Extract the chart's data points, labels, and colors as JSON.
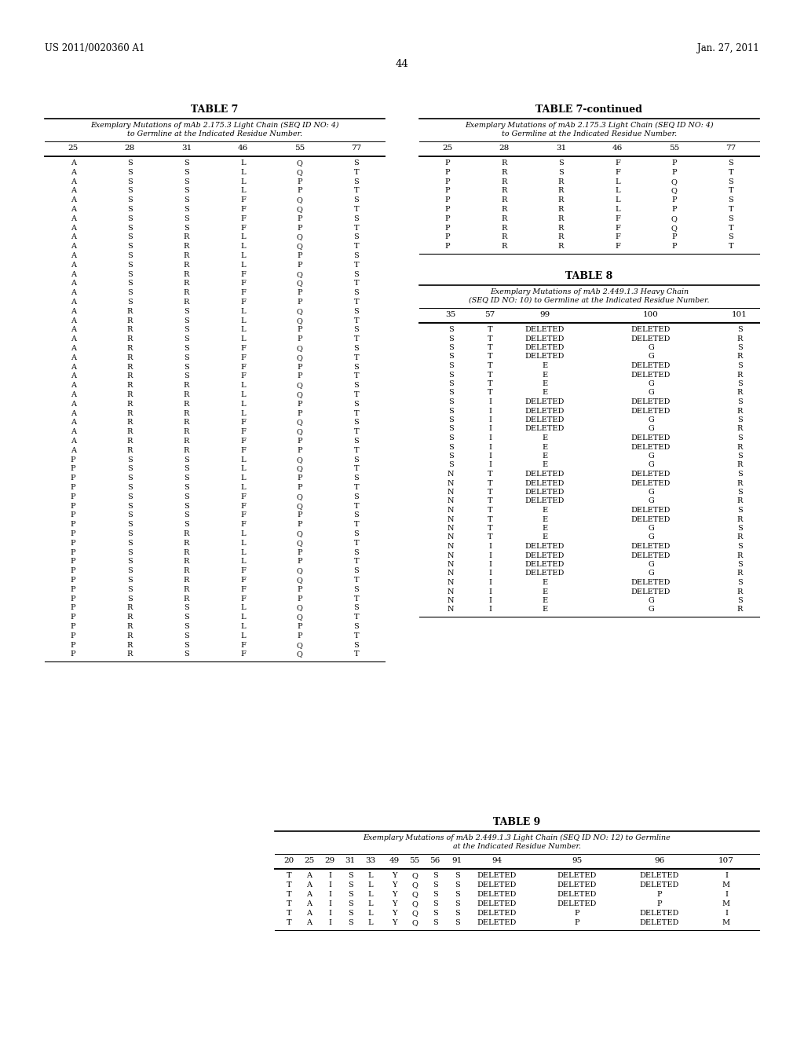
{
  "header_left": "US 2011/0020360 A1",
  "header_right": "Jan. 27, 2011",
  "page_number": "44",
  "table7_title": "TABLE 7",
  "table7_subtitle_1": "Exemplary Mutations of mAb 2.175.3 Light Chain (SEQ ID NO: 4)",
  "table7_subtitle_2": "to Germline at the Indicated Residue Number.",
  "table7_headers": [
    "25",
    "28",
    "31",
    "46",
    "55",
    "77"
  ],
  "table7_data": [
    [
      "A",
      "S",
      "S",
      "L",
      "Q",
      "S"
    ],
    [
      "A",
      "S",
      "S",
      "L",
      "Q",
      "T"
    ],
    [
      "A",
      "S",
      "S",
      "L",
      "P",
      "S"
    ],
    [
      "A",
      "S",
      "S",
      "L",
      "P",
      "T"
    ],
    [
      "A",
      "S",
      "S",
      "F",
      "Q",
      "S"
    ],
    [
      "A",
      "S",
      "S",
      "F",
      "Q",
      "T"
    ],
    [
      "A",
      "S",
      "S",
      "F",
      "P",
      "S"
    ],
    [
      "A",
      "S",
      "S",
      "F",
      "P",
      "T"
    ],
    [
      "A",
      "S",
      "R",
      "L",
      "Q",
      "S"
    ],
    [
      "A",
      "S",
      "R",
      "L",
      "Q",
      "T"
    ],
    [
      "A",
      "S",
      "R",
      "L",
      "P",
      "S"
    ],
    [
      "A",
      "S",
      "R",
      "L",
      "P",
      "T"
    ],
    [
      "A",
      "S",
      "R",
      "F",
      "Q",
      "S"
    ],
    [
      "A",
      "S",
      "R",
      "F",
      "Q",
      "T"
    ],
    [
      "A",
      "S",
      "R",
      "F",
      "P",
      "S"
    ],
    [
      "A",
      "S",
      "R",
      "F",
      "P",
      "T"
    ],
    [
      "A",
      "R",
      "S",
      "L",
      "Q",
      "S"
    ],
    [
      "A",
      "R",
      "S",
      "L",
      "Q",
      "T"
    ],
    [
      "A",
      "R",
      "S",
      "L",
      "P",
      "S"
    ],
    [
      "A",
      "R",
      "S",
      "L",
      "P",
      "T"
    ],
    [
      "A",
      "R",
      "S",
      "F",
      "Q",
      "S"
    ],
    [
      "A",
      "R",
      "S",
      "F",
      "Q",
      "T"
    ],
    [
      "A",
      "R",
      "S",
      "F",
      "P",
      "S"
    ],
    [
      "A",
      "R",
      "S",
      "F",
      "P",
      "T"
    ],
    [
      "A",
      "R",
      "R",
      "L",
      "Q",
      "S"
    ],
    [
      "A",
      "R",
      "R",
      "L",
      "Q",
      "T"
    ],
    [
      "A",
      "R",
      "R",
      "L",
      "P",
      "S"
    ],
    [
      "A",
      "R",
      "R",
      "L",
      "P",
      "T"
    ],
    [
      "A",
      "R",
      "R",
      "F",
      "Q",
      "S"
    ],
    [
      "A",
      "R",
      "R",
      "F",
      "Q",
      "T"
    ],
    [
      "A",
      "R",
      "R",
      "F",
      "P",
      "S"
    ],
    [
      "A",
      "R",
      "R",
      "F",
      "P",
      "T"
    ],
    [
      "P",
      "S",
      "S",
      "L",
      "Q",
      "S"
    ],
    [
      "P",
      "S",
      "S",
      "L",
      "Q",
      "T"
    ],
    [
      "P",
      "S",
      "S",
      "L",
      "P",
      "S"
    ],
    [
      "P",
      "S",
      "S",
      "L",
      "P",
      "T"
    ],
    [
      "P",
      "S",
      "S",
      "F",
      "Q",
      "S"
    ],
    [
      "P",
      "S",
      "S",
      "F",
      "Q",
      "T"
    ],
    [
      "P",
      "S",
      "S",
      "F",
      "P",
      "S"
    ],
    [
      "P",
      "S",
      "S",
      "F",
      "P",
      "T"
    ],
    [
      "P",
      "S",
      "R",
      "L",
      "Q",
      "S"
    ],
    [
      "P",
      "S",
      "R",
      "L",
      "Q",
      "T"
    ],
    [
      "P",
      "S",
      "R",
      "L",
      "P",
      "S"
    ],
    [
      "P",
      "S",
      "R",
      "L",
      "P",
      "T"
    ],
    [
      "P",
      "S",
      "R",
      "F",
      "Q",
      "S"
    ],
    [
      "P",
      "S",
      "R",
      "F",
      "Q",
      "T"
    ],
    [
      "P",
      "S",
      "R",
      "F",
      "P",
      "S"
    ],
    [
      "P",
      "S",
      "R",
      "F",
      "P",
      "T"
    ],
    [
      "P",
      "R",
      "S",
      "L",
      "Q",
      "S"
    ],
    [
      "P",
      "R",
      "S",
      "L",
      "Q",
      "T"
    ],
    [
      "P",
      "R",
      "S",
      "L",
      "P",
      "S"
    ],
    [
      "P",
      "R",
      "S",
      "L",
      "P",
      "T"
    ],
    [
      "P",
      "R",
      "S",
      "F",
      "Q",
      "S"
    ],
    [
      "P",
      "R",
      "S",
      "F",
      "Q",
      "T"
    ]
  ],
  "table7c_title": "TABLE 7-continued",
  "table7c_subtitle_1": "Exemplary Mutations of mAb 2.175.3 Light Chain (SEQ ID NO: 4)",
  "table7c_subtitle_2": "to Germline at the Indicated Residue Number.",
  "table7c_headers": [
    "25",
    "28",
    "31",
    "46",
    "55",
    "77"
  ],
  "table7c_data": [
    [
      "P",
      "R",
      "S",
      "F",
      "P",
      "S"
    ],
    [
      "P",
      "R",
      "S",
      "F",
      "P",
      "T"
    ],
    [
      "P",
      "R",
      "R",
      "L",
      "Q",
      "S"
    ],
    [
      "P",
      "R",
      "R",
      "L",
      "Q",
      "T"
    ],
    [
      "P",
      "R",
      "R",
      "L",
      "P",
      "S"
    ],
    [
      "P",
      "R",
      "R",
      "L",
      "P",
      "T"
    ],
    [
      "P",
      "R",
      "R",
      "F",
      "Q",
      "S"
    ],
    [
      "P",
      "R",
      "R",
      "F",
      "Q",
      "T"
    ],
    [
      "P",
      "R",
      "R",
      "F",
      "P",
      "S"
    ],
    [
      "P",
      "R",
      "R",
      "F",
      "P",
      "T"
    ]
  ],
  "table8_title": "TABLE 8",
  "table8_subtitle_1": "Exemplary Mutations of mAb 2.449.1.3 Heavy Chain",
  "table8_subtitle_2": "(SEQ ID NO: 10) to Germline at the Indicated Residue Number.",
  "table8_headers": [
    "35",
    "57",
    "99",
    "100",
    "101"
  ],
  "table8_data": [
    [
      "S",
      "T",
      "DELETED",
      "DELETED",
      "S"
    ],
    [
      "S",
      "T",
      "DELETED",
      "DELETED",
      "R"
    ],
    [
      "S",
      "T",
      "DELETED",
      "G",
      "S"
    ],
    [
      "S",
      "T",
      "DELETED",
      "G",
      "R"
    ],
    [
      "S",
      "T",
      "E",
      "DELETED",
      "S"
    ],
    [
      "S",
      "T",
      "E",
      "DELETED",
      "R"
    ],
    [
      "S",
      "T",
      "E",
      "G",
      "S"
    ],
    [
      "S",
      "T",
      "E",
      "G",
      "R"
    ],
    [
      "S",
      "I",
      "DELETED",
      "DELETED",
      "S"
    ],
    [
      "S",
      "I",
      "DELETED",
      "DELETED",
      "R"
    ],
    [
      "S",
      "I",
      "DELETED",
      "G",
      "S"
    ],
    [
      "S",
      "I",
      "DELETED",
      "G",
      "R"
    ],
    [
      "S",
      "I",
      "E",
      "DELETED",
      "S"
    ],
    [
      "S",
      "I",
      "E",
      "DELETED",
      "R"
    ],
    [
      "S",
      "I",
      "E",
      "G",
      "S"
    ],
    [
      "S",
      "I",
      "E",
      "G",
      "R"
    ],
    [
      "N",
      "T",
      "DELETED",
      "DELETED",
      "S"
    ],
    [
      "N",
      "T",
      "DELETED",
      "DELETED",
      "R"
    ],
    [
      "N",
      "T",
      "DELETED",
      "G",
      "S"
    ],
    [
      "N",
      "T",
      "DELETED",
      "G",
      "R"
    ],
    [
      "N",
      "T",
      "E",
      "DELETED",
      "S"
    ],
    [
      "N",
      "T",
      "E",
      "DELETED",
      "R"
    ],
    [
      "N",
      "T",
      "E",
      "G",
      "S"
    ],
    [
      "N",
      "T",
      "E",
      "G",
      "R"
    ],
    [
      "N",
      "I",
      "DELETED",
      "DELETED",
      "S"
    ],
    [
      "N",
      "I",
      "DELETED",
      "DELETED",
      "R"
    ],
    [
      "N",
      "I",
      "DELETED",
      "G",
      "S"
    ],
    [
      "N",
      "I",
      "DELETED",
      "G",
      "R"
    ],
    [
      "N",
      "I",
      "E",
      "DELETED",
      "S"
    ],
    [
      "N",
      "I",
      "E",
      "DELETED",
      "R"
    ],
    [
      "N",
      "I",
      "E",
      "G",
      "S"
    ],
    [
      "N",
      "I",
      "E",
      "G",
      "R"
    ]
  ],
  "table9_title": "TABLE 9",
  "table9_subtitle_1": "Exemplary Mutations of mAb 2.449.1.3 Light Chain (SEQ ID NO: 12) to Germline",
  "table9_subtitle_2": "at the Indicated Residue Number.",
  "table9_headers": [
    "20",
    "25",
    "29",
    "31",
    "33",
    "49",
    "55",
    "56",
    "91",
    "94",
    "95",
    "96",
    "107"
  ],
  "table9_data": [
    [
      "T",
      "A",
      "I",
      "S",
      "L",
      "Y",
      "Q",
      "S",
      "S",
      "DELETED",
      "DELETED",
      "DELETED",
      "I"
    ],
    [
      "T",
      "A",
      "I",
      "S",
      "L",
      "Y",
      "Q",
      "S",
      "S",
      "DELETED",
      "DELETED",
      "DELETED",
      "M"
    ],
    [
      "T",
      "A",
      "I",
      "S",
      "L",
      "Y",
      "Q",
      "S",
      "S",
      "DELETED",
      "DELETED",
      "P",
      "I"
    ],
    [
      "T",
      "A",
      "I",
      "S",
      "L",
      "Y",
      "Q",
      "S",
      "S",
      "DELETED",
      "DELETED",
      "P",
      "M"
    ],
    [
      "T",
      "A",
      "I",
      "S",
      "L",
      "Y",
      "Q",
      "S",
      "S",
      "DELETED",
      "P",
      "DELETED",
      "I"
    ],
    [
      "T",
      "A",
      "I",
      "S",
      "L",
      "Y",
      "Q",
      "S",
      "S",
      "DELETED",
      "P",
      "DELETED",
      "M"
    ]
  ]
}
